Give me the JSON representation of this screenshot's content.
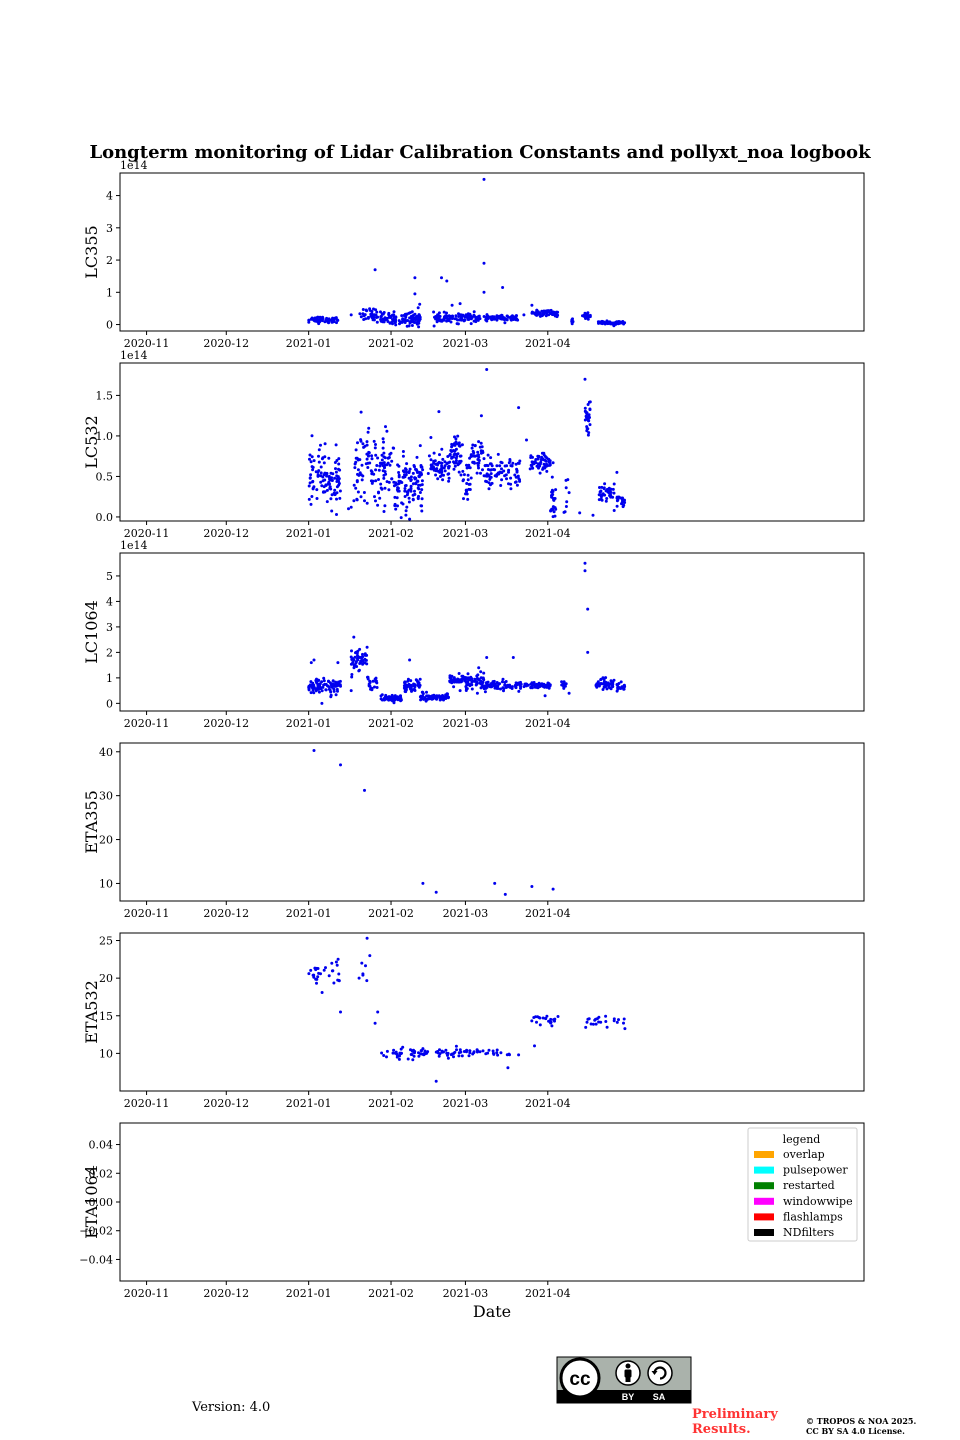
{
  "figure": {
    "title": "Longterm monitoring of Lidar Calibration Constants and pollyxt_noa logbook",
    "xlabel": "Date",
    "version_text": "Version: 4.0",
    "preliminary_text": [
      "Preliminary",
      "Results."
    ],
    "copyright_text": [
      "© TROPOS & NOA 2025.",
      "CC BY SA 4.0 License."
    ],
    "license_badge": {
      "cc": "cc",
      "by": "BY",
      "sa": "SA"
    }
  },
  "colors": {
    "points": "#0000ee",
    "overlap": "#ffa500",
    "pulsepower": "#00ffff",
    "restarted": "#008000",
    "windowwipe": "#ff00ff",
    "flashlamps": "#ff0000",
    "NDfilters": "#000000"
  },
  "chart_data": [
    {
      "type": "scatter",
      "name": "LC355",
      "ylabel": "LC355",
      "offset_text": "1e14",
      "xlim": [
        -10,
        270
      ],
      "xticks": [
        {
          "v": 0,
          "label": "2020-11"
        },
        {
          "v": 30,
          "label": "2020-12"
        },
        {
          "v": 61,
          "label": "2021-01"
        },
        {
          "v": 92,
          "label": "2021-02"
        },
        {
          "v": 120,
          "label": "2021-03"
        },
        {
          "v": 151,
          "label": "2021-04"
        }
      ],
      "ylim": [
        -0.2,
        4.7
      ],
      "yticks": [
        {
          "v": 0,
          "label": "0"
        },
        {
          "v": 1,
          "label": "1"
        },
        {
          "v": 2,
          "label": "2"
        },
        {
          "v": 3,
          "label": "3"
        },
        {
          "v": 4,
          "label": "4"
        }
      ],
      "outliers": [
        [
          66,
          0.2
        ],
        [
          77,
          0.3
        ],
        [
          86,
          1.7
        ],
        [
          93,
          0.3
        ],
        [
          100,
          0.4
        ],
        [
          101,
          1.45
        ],
        [
          101,
          0.95
        ],
        [
          111,
          1.45
        ],
        [
          113,
          1.35
        ],
        [
          115,
          0.6
        ],
        [
          118,
          0.65
        ],
        [
          127,
          4.5
        ],
        [
          127,
          1.9
        ],
        [
          127,
          1.0
        ],
        [
          134,
          1.15
        ],
        [
          142,
          0.3
        ],
        [
          145,
          0.6
        ],
        [
          160,
          0.1
        ],
        [
          165,
          0.35
        ]
      ],
      "segments": [
        {
          "x0": 61,
          "x1": 72,
          "y": 0.15,
          "s": 0.05,
          "n": 60
        },
        {
          "x0": 80,
          "x1": 87,
          "y": 0.3,
          "s": 0.1,
          "n": 35
        },
        {
          "x0": 88,
          "x1": 100,
          "y": 0.18,
          "s": 0.1,
          "n": 80
        },
        {
          "x0": 100,
          "x1": 103,
          "y": 0.2,
          "s": 0.15,
          "n": 30
        },
        {
          "x0": 108,
          "x1": 126,
          "y": 0.2,
          "s": 0.07,
          "n": 110
        },
        {
          "x0": 127,
          "x1": 140,
          "y": 0.2,
          "s": 0.05,
          "n": 70
        },
        {
          "x0": 145,
          "x1": 155,
          "y": 0.35,
          "s": 0.04,
          "n": 60
        },
        {
          "x0": 160,
          "x1": 161,
          "y": 0.1,
          "s": 0.08,
          "n": 8
        },
        {
          "x0": 164,
          "x1": 167,
          "y": 0.25,
          "s": 0.06,
          "n": 20
        },
        {
          "x0": 170,
          "x1": 180,
          "y": 0.05,
          "s": 0.03,
          "n": 60
        }
      ]
    },
    {
      "type": "scatter",
      "name": "LC532",
      "ylabel": "LC532",
      "offset_text": "1e14",
      "xlim": [
        -10,
        270
      ],
      "xticks": [
        {
          "v": 0,
          "label": "2020-11"
        },
        {
          "v": 30,
          "label": "2020-12"
        },
        {
          "v": 61,
          "label": "2021-01"
        },
        {
          "v": 92,
          "label": "2021-02"
        },
        {
          "v": 120,
          "label": "2021-03"
        },
        {
          "v": 151,
          "label": "2021-04"
        }
      ],
      "ylim": [
        -0.05,
        1.9
      ],
      "yticks": [
        {
          "v": 0,
          "label": "0.0"
        },
        {
          "v": 0.5,
          "label": "0.5"
        },
        {
          "v": 1.0,
          "label": "1.0"
        },
        {
          "v": 1.5,
          "label": "1.5"
        }
      ],
      "outliers": [
        [
          76,
          0.1
        ],
        [
          77,
          0.12
        ],
        [
          82,
          0.2
        ],
        [
          89,
          0.85
        ],
        [
          103,
          0.88
        ],
        [
          107,
          0.98
        ],
        [
          110,
          1.3
        ],
        [
          126,
          1.25
        ],
        [
          128,
          1.82
        ],
        [
          140,
          1.35
        ],
        [
          143,
          0.95
        ],
        [
          153,
          0.67
        ],
        [
          159,
          0.3
        ],
        [
          163,
          0.05
        ],
        [
          165,
          1.7
        ],
        [
          167,
          1.42
        ],
        [
          168,
          0.02
        ],
        [
          171,
          0.32
        ],
        [
          176,
          0.08
        ],
        [
          177,
          0.55
        ]
      ],
      "segments": [
        {
          "x0": 61,
          "x1": 73,
          "y": 0.48,
          "s": 0.17,
          "n": 110
        },
        {
          "x0": 78,
          "x1": 93,
          "y": 0.6,
          "s": 0.22,
          "n": 120
        },
        {
          "x0": 93,
          "x1": 99,
          "y": 0.35,
          "s": 0.18,
          "n": 60
        },
        {
          "x0": 99,
          "x1": 104,
          "y": 0.45,
          "s": 0.18,
          "n": 60
        },
        {
          "x0": 106,
          "x1": 114,
          "y": 0.62,
          "s": 0.09,
          "n": 60
        },
        {
          "x0": 114,
          "x1": 119,
          "y": 0.78,
          "s": 0.1,
          "n": 50
        },
        {
          "x0": 119,
          "x1": 122,
          "y": 0.4,
          "s": 0.18,
          "n": 25
        },
        {
          "x0": 122,
          "x1": 127,
          "y": 0.7,
          "s": 0.12,
          "n": 40
        },
        {
          "x0": 127,
          "x1": 141,
          "y": 0.55,
          "s": 0.1,
          "n": 80
        },
        {
          "x0": 144,
          "x1": 152,
          "y": 0.65,
          "s": 0.06,
          "n": 60
        },
        {
          "x0": 152,
          "x1": 154,
          "y": 0.25,
          "s": 0.15,
          "n": 25
        },
        {
          "x0": 157,
          "x1": 159,
          "y": 0.2,
          "s": 0.15,
          "n": 10
        },
        {
          "x0": 165,
          "x1": 167,
          "y": 1.2,
          "s": 0.1,
          "n": 30
        },
        {
          "x0": 170,
          "x1": 176,
          "y": 0.3,
          "s": 0.05,
          "n": 40
        },
        {
          "x0": 177,
          "x1": 180,
          "y": 0.2,
          "s": 0.03,
          "n": 20
        }
      ]
    },
    {
      "type": "scatter",
      "name": "LC1064",
      "ylabel": "LC1064",
      "offset_text": "1e14",
      "xlim": [
        -10,
        270
      ],
      "xticks": [
        {
          "v": 0,
          "label": "2020-11"
        },
        {
          "v": 30,
          "label": "2020-12"
        },
        {
          "v": 61,
          "label": "2021-01"
        },
        {
          "v": 92,
          "label": "2021-02"
        },
        {
          "v": 120,
          "label": "2021-03"
        },
        {
          "v": 151,
          "label": "2021-04"
        }
      ],
      "ylim": [
        -0.3,
        5.9
      ],
      "yticks": [
        {
          "v": 0,
          "label": "0"
        },
        {
          "v": 1,
          "label": "1"
        },
        {
          "v": 2,
          "label": "2"
        },
        {
          "v": 3,
          "label": "3"
        },
        {
          "v": 4,
          "label": "4"
        },
        {
          "v": 5,
          "label": "5"
        }
      ],
      "outliers": [
        [
          62,
          1.6
        ],
        [
          63,
          1.7
        ],
        [
          66,
          0.0
        ],
        [
          72,
          1.6
        ],
        [
          77,
          0.5
        ],
        [
          78,
          2.6
        ],
        [
          83,
          2.2
        ],
        [
          99,
          1.7
        ],
        [
          118,
          0.5
        ],
        [
          125,
          1.4
        ],
        [
          128,
          1.8
        ],
        [
          138,
          1.8
        ],
        [
          150,
          0.3
        ],
        [
          159,
          0.4
        ],
        [
          165,
          5.5
        ],
        [
          165,
          5.2
        ],
        [
          166,
          3.7
        ],
        [
          166,
          2.0
        ]
      ],
      "segments": [
        {
          "x0": 61,
          "x1": 73,
          "y": 0.65,
          "s": 0.15,
          "n": 90
        },
        {
          "x0": 77,
          "x1": 83,
          "y": 1.7,
          "s": 0.2,
          "n": 50
        },
        {
          "x0": 83,
          "x1": 87,
          "y": 0.85,
          "s": 0.15,
          "n": 20
        },
        {
          "x0": 88,
          "x1": 96,
          "y": 0.2,
          "s": 0.06,
          "n": 60
        },
        {
          "x0": 97,
          "x1": 103,
          "y": 0.65,
          "s": 0.15,
          "n": 50
        },
        {
          "x0": 103,
          "x1": 106,
          "y": 0.3,
          "s": 0.1,
          "n": 20
        },
        {
          "x0": 106,
          "x1": 114,
          "y": 0.25,
          "s": 0.05,
          "n": 50
        },
        {
          "x0": 114,
          "x1": 120,
          "y": 0.9,
          "s": 0.1,
          "n": 50
        },
        {
          "x0": 120,
          "x1": 127,
          "y": 0.8,
          "s": 0.2,
          "n": 60
        },
        {
          "x0": 127,
          "x1": 141,
          "y": 0.7,
          "s": 0.1,
          "n": 80
        },
        {
          "x0": 142,
          "x1": 152,
          "y": 0.7,
          "s": 0.06,
          "n": 60
        },
        {
          "x0": 156,
          "x1": 158,
          "y": 0.7,
          "s": 0.1,
          "n": 12
        },
        {
          "x0": 169,
          "x1": 176,
          "y": 0.75,
          "s": 0.12,
          "n": 50
        },
        {
          "x0": 177,
          "x1": 180,
          "y": 0.6,
          "s": 0.1,
          "n": 20
        }
      ]
    },
    {
      "type": "scatter",
      "name": "ETA355",
      "ylabel": "ETA355",
      "offset_text": "",
      "xlim": [
        -10,
        270
      ],
      "xticks": [
        {
          "v": 0,
          "label": "2020-11"
        },
        {
          "v": 30,
          "label": "2020-12"
        },
        {
          "v": 61,
          "label": "2021-01"
        },
        {
          "v": 92,
          "label": "2021-02"
        },
        {
          "v": 120,
          "label": "2021-03"
        },
        {
          "v": 151,
          "label": "2021-04"
        }
      ],
      "ylim": [
        6,
        42
      ],
      "yticks": [
        {
          "v": 10,
          "label": "10"
        },
        {
          "v": 20,
          "label": "20"
        },
        {
          "v": 30,
          "label": "30"
        },
        {
          "v": 40,
          "label": "40"
        }
      ],
      "outliers": [
        [
          63,
          40.3
        ],
        [
          73,
          37.0
        ],
        [
          82,
          31.2
        ],
        [
          104,
          10.0
        ],
        [
          109,
          8.0
        ],
        [
          131,
          10.0
        ],
        [
          135,
          7.5
        ],
        [
          145,
          9.3
        ],
        [
          153,
          8.7
        ]
      ],
      "segments": []
    },
    {
      "type": "scatter",
      "name": "ETA532",
      "ylabel": "ETA532",
      "offset_text": "",
      "xlim": [
        -10,
        270
      ],
      "xticks": [
        {
          "v": 0,
          "label": "2020-11"
        },
        {
          "v": 30,
          "label": "2020-12"
        },
        {
          "v": 61,
          "label": "2021-01"
        },
        {
          "v": 92,
          "label": "2021-02"
        },
        {
          "v": 120,
          "label": "2021-03"
        },
        {
          "v": 151,
          "label": "2021-04"
        }
      ],
      "ylim": [
        5,
        26
      ],
      "yticks": [
        {
          "v": 10,
          "label": "10"
        },
        {
          "v": 15,
          "label": "15"
        },
        {
          "v": 20,
          "label": "20"
        },
        {
          "v": 25,
          "label": "25"
        }
      ],
      "outliers": [
        [
          73,
          15.5
        ],
        [
          80,
          20.0
        ],
        [
          81,
          22.0
        ],
        [
          83,
          25.3
        ],
        [
          84,
          23.0
        ],
        [
          86,
          14.0
        ],
        [
          87,
          15.5
        ],
        [
          109,
          6.3
        ],
        [
          136,
          8.1
        ],
        [
          140,
          9.8
        ],
        [
          146,
          11.0
        ],
        [
          180,
          13.3
        ]
      ],
      "segments": [
        {
          "x0": 61,
          "x1": 73,
          "y": 20.5,
          "s": 0.8,
          "n": 30
        },
        {
          "x0": 81,
          "x1": 83,
          "y": 20.5,
          "s": 0.8,
          "n": 4
        },
        {
          "x0": 88,
          "x1": 106,
          "y": 9.9,
          "s": 0.35,
          "n": 45
        },
        {
          "x0": 108,
          "x1": 123,
          "y": 10.0,
          "s": 0.3,
          "n": 35
        },
        {
          "x0": 123,
          "x1": 129,
          "y": 10.2,
          "s": 0.2,
          "n": 10
        },
        {
          "x0": 130,
          "x1": 137,
          "y": 10.0,
          "s": 0.4,
          "n": 10
        },
        {
          "x0": 144,
          "x1": 155,
          "y": 14.5,
          "s": 0.5,
          "n": 22
        },
        {
          "x0": 164,
          "x1": 180,
          "y": 14.2,
          "s": 0.4,
          "n": 22
        }
      ]
    },
    {
      "type": "scatter",
      "name": "ETA1064",
      "ylabel": "ETA1064",
      "offset_text": "",
      "xlim": [
        -10,
        270
      ],
      "xticks": [
        {
          "v": 0,
          "label": "2020-11"
        },
        {
          "v": 30,
          "label": "2020-12"
        },
        {
          "v": 61,
          "label": "2021-01"
        },
        {
          "v": 92,
          "label": "2021-02"
        },
        {
          "v": 120,
          "label": "2021-03"
        },
        {
          "v": 151,
          "label": "2021-04"
        }
      ],
      "ylim": [
        -0.055,
        0.055
      ],
      "yticks": [
        {
          "v": -0.04,
          "label": "−0.04"
        },
        {
          "v": -0.02,
          "label": "−0.02"
        },
        {
          "v": 0,
          "label": "0.00"
        },
        {
          "v": 0.02,
          "label": "0.02"
        },
        {
          "v": 0.04,
          "label": "0.04"
        }
      ],
      "outliers": [],
      "segments": [],
      "legend": {
        "title": "legend",
        "position": "upper right",
        "entries": [
          {
            "label": "overlap",
            "color": "#ffa500"
          },
          {
            "label": "pulsepower",
            "color": "#00ffff"
          },
          {
            "label": "restarted",
            "color": "#008000"
          },
          {
            "label": "windowwipe",
            "color": "#ff00ff"
          },
          {
            "label": "flashlamps",
            "color": "#ff0000"
          },
          {
            "label": "NDfilters",
            "color": "#000000"
          }
        ]
      }
    }
  ]
}
